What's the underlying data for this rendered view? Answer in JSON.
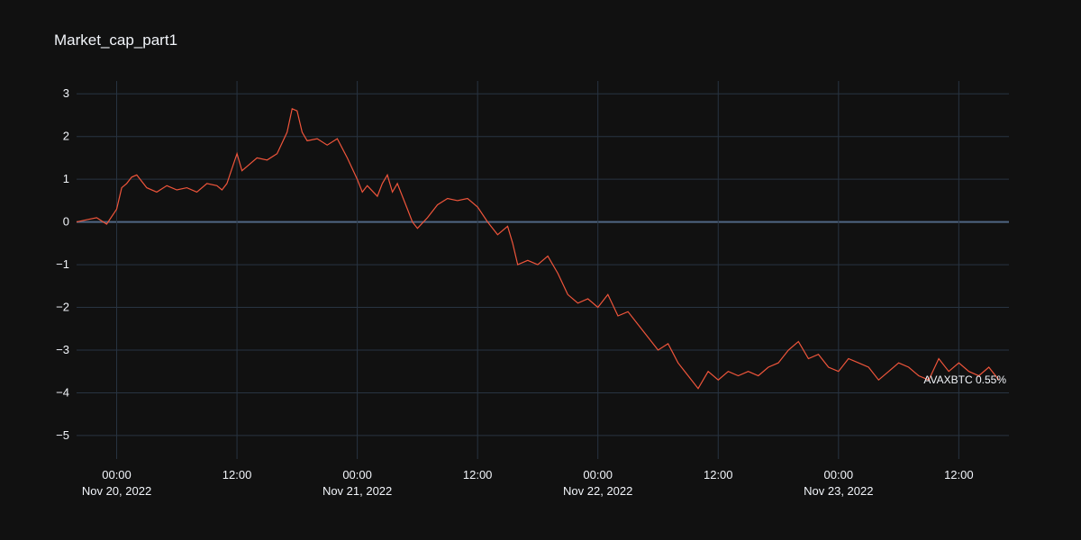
{
  "chart_data": {
    "type": "line",
    "title": "Market_cap_part1",
    "xlabel": "",
    "ylabel": "",
    "ylim": [
      -5.55,
      3.3
    ],
    "xlim": [
      "2022-11-19T20:00",
      "2022-11-23T17:00"
    ],
    "y_ticks": [
      3,
      2,
      1,
      0,
      -1,
      -2,
      -3,
      -4,
      -5
    ],
    "y_tick_labels": [
      "3",
      "2",
      "1",
      "0",
      "−1",
      "−2",
      "−3",
      "−4",
      "−5"
    ],
    "x_ticks": [
      {
        "t": "2022-11-20T00:00",
        "label": "00:00",
        "sub": "Nov 20, 2022"
      },
      {
        "t": "2022-11-20T12:00",
        "label": "12:00",
        "sub": ""
      },
      {
        "t": "2022-11-21T00:00",
        "label": "00:00",
        "sub": "Nov 21, 2022"
      },
      {
        "t": "2022-11-21T12:00",
        "label": "12:00",
        "sub": ""
      },
      {
        "t": "2022-11-22T00:00",
        "label": "00:00",
        "sub": "Nov 22, 2022"
      },
      {
        "t": "2022-11-22T12:00",
        "label": "12:00",
        "sub": ""
      },
      {
        "t": "2022-11-23T00:00",
        "label": "00:00",
        "sub": "Nov 23, 2022"
      },
      {
        "t": "2022-11-23T12:00",
        "label": "12:00",
        "sub": ""
      }
    ],
    "grid": true,
    "series": [
      {
        "name": "AVAXBTC",
        "color": "#ef553b",
        "label": "AVAXBTC 0.55%",
        "points": [
          [
            "2022-11-19T20:00",
            0.0
          ],
          [
            "2022-11-19T21:00",
            0.05
          ],
          [
            "2022-11-19T22:00",
            0.1
          ],
          [
            "2022-11-19T23:00",
            -0.05
          ],
          [
            "2022-11-20T00:00",
            0.3
          ],
          [
            "2022-11-20T00:30",
            0.8
          ],
          [
            "2022-11-20T01:00",
            0.9
          ],
          [
            "2022-11-20T01:30",
            1.05
          ],
          [
            "2022-11-20T02:00",
            1.1
          ],
          [
            "2022-11-20T03:00",
            0.8
          ],
          [
            "2022-11-20T04:00",
            0.7
          ],
          [
            "2022-11-20T05:00",
            0.85
          ],
          [
            "2022-11-20T06:00",
            0.75
          ],
          [
            "2022-11-20T07:00",
            0.8
          ],
          [
            "2022-11-20T08:00",
            0.7
          ],
          [
            "2022-11-20T09:00",
            0.9
          ],
          [
            "2022-11-20T10:00",
            0.85
          ],
          [
            "2022-11-20T10:30",
            0.75
          ],
          [
            "2022-11-20T11:00",
            0.9
          ],
          [
            "2022-11-20T12:00",
            1.6
          ],
          [
            "2022-11-20T12:30",
            1.2
          ],
          [
            "2022-11-20T13:00",
            1.3
          ],
          [
            "2022-11-20T14:00",
            1.5
          ],
          [
            "2022-11-20T15:00",
            1.45
          ],
          [
            "2022-11-20T16:00",
            1.6
          ],
          [
            "2022-11-20T17:00",
            2.1
          ],
          [
            "2022-11-20T17:30",
            2.65
          ],
          [
            "2022-11-20T18:00",
            2.6
          ],
          [
            "2022-11-20T18:30",
            2.1
          ],
          [
            "2022-11-20T19:00",
            1.9
          ],
          [
            "2022-11-20T20:00",
            1.95
          ],
          [
            "2022-11-20T21:00",
            1.8
          ],
          [
            "2022-11-20T22:00",
            1.95
          ],
          [
            "2022-11-20T23:00",
            1.5
          ],
          [
            "2022-11-21T00:00",
            1.0
          ],
          [
            "2022-11-21T00:30",
            0.7
          ],
          [
            "2022-11-21T01:00",
            0.85
          ],
          [
            "2022-11-21T02:00",
            0.6
          ],
          [
            "2022-11-21T02:30",
            0.9
          ],
          [
            "2022-11-21T03:00",
            1.1
          ],
          [
            "2022-11-21T03:30",
            0.7
          ],
          [
            "2022-11-21T04:00",
            0.9
          ],
          [
            "2022-11-21T05:00",
            0.3
          ],
          [
            "2022-11-21T05:30",
            0.0
          ],
          [
            "2022-11-21T06:00",
            -0.15
          ],
          [
            "2022-11-21T07:00",
            0.1
          ],
          [
            "2022-11-21T08:00",
            0.4
          ],
          [
            "2022-11-21T09:00",
            0.55
          ],
          [
            "2022-11-21T10:00",
            0.5
          ],
          [
            "2022-11-21T11:00",
            0.55
          ],
          [
            "2022-11-21T12:00",
            0.35
          ],
          [
            "2022-11-21T13:00",
            0.0
          ],
          [
            "2022-11-21T14:00",
            -0.3
          ],
          [
            "2022-11-21T15:00",
            -0.1
          ],
          [
            "2022-11-21T15:30",
            -0.5
          ],
          [
            "2022-11-21T16:00",
            -1.0
          ],
          [
            "2022-11-21T17:00",
            -0.9
          ],
          [
            "2022-11-21T18:00",
            -1.0
          ],
          [
            "2022-11-21T19:00",
            -0.8
          ],
          [
            "2022-11-21T20:00",
            -1.2
          ],
          [
            "2022-11-21T21:00",
            -1.7
          ],
          [
            "2022-11-21T22:00",
            -1.9
          ],
          [
            "2022-11-21T23:00",
            -1.8
          ],
          [
            "2022-11-22T00:00",
            -2.0
          ],
          [
            "2022-11-22T01:00",
            -1.7
          ],
          [
            "2022-11-22T02:00",
            -2.2
          ],
          [
            "2022-11-22T03:00",
            -2.1
          ],
          [
            "2022-11-22T04:00",
            -2.4
          ],
          [
            "2022-11-22T05:00",
            -2.7
          ],
          [
            "2022-11-22T06:00",
            -3.0
          ],
          [
            "2022-11-22T07:00",
            -2.85
          ],
          [
            "2022-11-22T08:00",
            -3.3
          ],
          [
            "2022-11-22T09:00",
            -3.6
          ],
          [
            "2022-11-22T10:00",
            -3.9
          ],
          [
            "2022-11-22T11:00",
            -3.5
          ],
          [
            "2022-11-22T12:00",
            -3.7
          ],
          [
            "2022-11-22T13:00",
            -3.5
          ],
          [
            "2022-11-22T14:00",
            -3.6
          ],
          [
            "2022-11-22T15:00",
            -3.5
          ],
          [
            "2022-11-22T16:00",
            -3.6
          ],
          [
            "2022-11-22T17:00",
            -3.4
          ],
          [
            "2022-11-22T18:00",
            -3.3
          ],
          [
            "2022-11-22T19:00",
            -3.0
          ],
          [
            "2022-11-22T20:00",
            -2.8
          ],
          [
            "2022-11-22T21:00",
            -3.2
          ],
          [
            "2022-11-22T22:00",
            -3.1
          ],
          [
            "2022-11-22T23:00",
            -3.4
          ],
          [
            "2022-11-23T00:00",
            -3.5
          ],
          [
            "2022-11-23T01:00",
            -3.2
          ],
          [
            "2022-11-23T02:00",
            -3.3
          ],
          [
            "2022-11-23T03:00",
            -3.4
          ],
          [
            "2022-11-23T04:00",
            -3.7
          ],
          [
            "2022-11-23T05:00",
            -3.5
          ],
          [
            "2022-11-23T06:00",
            -3.3
          ],
          [
            "2022-11-23T07:00",
            -3.4
          ],
          [
            "2022-11-23T08:00",
            -3.6
          ],
          [
            "2022-11-23T09:00",
            -3.7
          ],
          [
            "2022-11-23T10:00",
            -3.2
          ],
          [
            "2022-11-23T11:00",
            -3.5
          ],
          [
            "2022-11-23T12:00",
            -3.3
          ],
          [
            "2022-11-23T13:00",
            -3.5
          ],
          [
            "2022-11-23T14:00",
            -3.6
          ],
          [
            "2022-11-23T15:00",
            -3.4
          ],
          [
            "2022-11-23T16:00",
            -3.7
          ]
        ]
      }
    ]
  }
}
